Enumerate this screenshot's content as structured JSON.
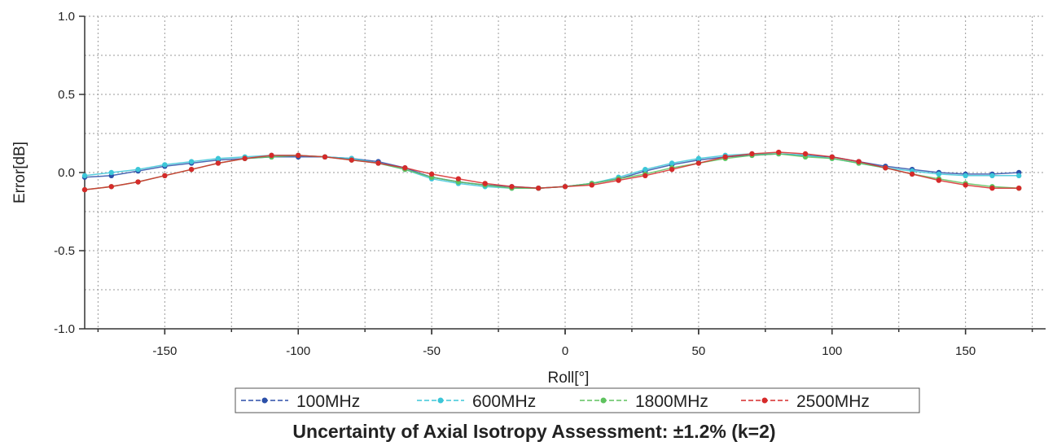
{
  "chart_data": {
    "type": "line",
    "xlabel": "Roll[°]",
    "ylabel": "Error[dB]",
    "xlim": [
      -180,
      180
    ],
    "ylim": [
      -1.0,
      1.0
    ],
    "xticks": [
      -150,
      -100,
      -50,
      0,
      50,
      100,
      150
    ],
    "yticks": [
      -1.0,
      -0.5,
      0.0,
      0.5,
      1.0
    ],
    "ytick_labels": [
      "-1.0",
      "-0.5",
      "0.0",
      "0.5",
      "1.0"
    ],
    "grid": true,
    "legend_position": "bottom",
    "x": [
      -180,
      -170,
      -160,
      -150,
      -140,
      -130,
      -120,
      -110,
      -100,
      -90,
      -80,
      -70,
      -60,
      -50,
      -40,
      -30,
      -20,
      -10,
      0,
      10,
      20,
      30,
      40,
      50,
      60,
      70,
      80,
      90,
      100,
      110,
      120,
      130,
      140,
      150,
      160,
      170
    ],
    "series": [
      {
        "name": "100MHz",
        "color": "#2b4fa8",
        "values": [
          -0.03,
          -0.02,
          0.01,
          0.04,
          0.06,
          0.08,
          0.09,
          0.1,
          0.1,
          0.1,
          0.09,
          0.07,
          0.03,
          -0.03,
          -0.06,
          -0.08,
          -0.09,
          -0.1,
          -0.09,
          -0.07,
          -0.04,
          0.01,
          0.05,
          0.08,
          0.1,
          0.11,
          0.12,
          0.11,
          0.1,
          0.07,
          0.04,
          0.02,
          0.0,
          -0.01,
          -0.01,
          0.0
        ]
      },
      {
        "name": "600MHz",
        "color": "#3cc6d8",
        "values": [
          -0.02,
          0.0,
          0.02,
          0.05,
          0.07,
          0.09,
          0.1,
          0.11,
          0.11,
          0.1,
          0.09,
          0.06,
          0.02,
          -0.04,
          -0.07,
          -0.09,
          -0.1,
          -0.1,
          -0.09,
          -0.07,
          -0.03,
          0.02,
          0.06,
          0.09,
          0.11,
          0.12,
          0.12,
          0.11,
          0.09,
          0.06,
          0.03,
          0.01,
          -0.01,
          -0.02,
          -0.02,
          -0.02
        ]
      },
      {
        "name": "1800MHz",
        "color": "#5ec25e",
        "values": [
          -0.11,
          -0.09,
          -0.06,
          -0.02,
          0.02,
          0.06,
          0.09,
          0.1,
          0.11,
          0.1,
          0.08,
          0.06,
          0.02,
          -0.03,
          -0.06,
          -0.08,
          -0.1,
          -0.1,
          -0.09,
          -0.07,
          -0.04,
          -0.01,
          0.03,
          0.06,
          0.09,
          0.11,
          0.12,
          0.1,
          0.09,
          0.06,
          0.03,
          -0.01,
          -0.04,
          -0.07,
          -0.09,
          -0.1
        ]
      },
      {
        "name": "2500MHz",
        "color": "#d62a2a",
        "values": [
          -0.11,
          -0.09,
          -0.06,
          -0.02,
          0.02,
          0.06,
          0.09,
          0.11,
          0.11,
          0.1,
          0.08,
          0.06,
          0.03,
          -0.01,
          -0.04,
          -0.07,
          -0.09,
          -0.1,
          -0.09,
          -0.08,
          -0.05,
          -0.02,
          0.02,
          0.06,
          0.1,
          0.12,
          0.13,
          0.12,
          0.1,
          0.07,
          0.03,
          -0.01,
          -0.05,
          -0.08,
          -0.1,
          -0.1
        ]
      }
    ],
    "caption": "Uncertainty of Axial Isotropy Assessment: ±1.2% (k=2)"
  }
}
